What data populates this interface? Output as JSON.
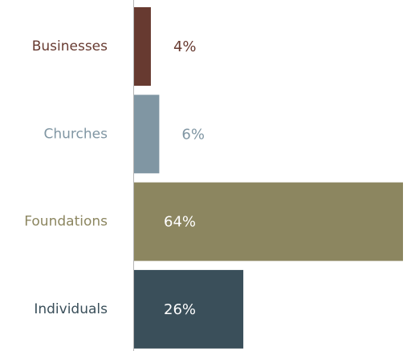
{
  "chart_data": {
    "type": "bar",
    "orientation": "horizontal",
    "categories": [
      "Businesses",
      "Churches",
      "Foundations",
      "Individuals"
    ],
    "values": [
      4,
      6,
      64,
      26
    ],
    "value_labels": [
      "4%",
      "6%",
      "64%",
      "26%"
    ],
    "colors": [
      "#673a30",
      "#8096a3",
      "#8c8660",
      "#3a4f5a"
    ],
    "value_label_colors": [
      "#673a30",
      "#8096a3",
      "#ffffff",
      "#ffffff"
    ],
    "xlim": [
      0,
      64
    ],
    "grid": false,
    "legend": false
  }
}
